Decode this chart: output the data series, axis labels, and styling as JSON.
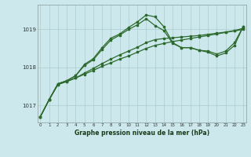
{
  "background_color": "#cce8ec",
  "grid_color": "#aacccc",
  "line_color": "#2d6a2d",
  "marker_color": "#2d6a2d",
  "ylabel_ticks": [
    1017,
    1018,
    1019
  ],
  "xlabel_ticks": [
    0,
    1,
    2,
    3,
    4,
    5,
    6,
    7,
    8,
    9,
    10,
    11,
    12,
    13,
    14,
    15,
    16,
    17,
    18,
    19,
    20,
    21,
    22,
    23
  ],
  "xlabel": "Graphe pression niveau de la mer (hPa)",
  "xlim": [
    -0.3,
    23.3
  ],
  "ylim": [
    1016.55,
    1019.65
  ],
  "line1_x": [
    0,
    1,
    2,
    3,
    4,
    5,
    6,
    7,
    8,
    9,
    10,
    11,
    12,
    13,
    14,
    15,
    16,
    17,
    18,
    19,
    20,
    21,
    22,
    23
  ],
  "line1_y": [
    1016.7,
    1017.15,
    1017.55,
    1017.63,
    1017.72,
    1017.82,
    1017.92,
    1018.03,
    1018.12,
    1018.22,
    1018.3,
    1018.4,
    1018.5,
    1018.58,
    1018.63,
    1018.68,
    1018.72,
    1018.76,
    1018.8,
    1018.84,
    1018.88,
    1018.92,
    1018.96,
    1019.0
  ],
  "line2_x": [
    0,
    1,
    2,
    3,
    4,
    5,
    6,
    7,
    8,
    9,
    10,
    11,
    12,
    13,
    14,
    15,
    16,
    17,
    18,
    19,
    20,
    21,
    22,
    23
  ],
  "line2_y": [
    1016.7,
    1017.15,
    1017.55,
    1017.63,
    1017.72,
    1017.85,
    1017.97,
    1018.1,
    1018.22,
    1018.33,
    1018.43,
    1018.53,
    1018.65,
    1018.73,
    1018.76,
    1018.78,
    1018.8,
    1018.82,
    1018.84,
    1018.87,
    1018.9,
    1018.93,
    1018.97,
    1019.03
  ],
  "line3_x": [
    0,
    1,
    2,
    3,
    4,
    5,
    6,
    7,
    8,
    9,
    10,
    11,
    12,
    13,
    14,
    15,
    16,
    17,
    18,
    19,
    20,
    21,
    22,
    23
  ],
  "line3_y": [
    1016.7,
    1017.15,
    1017.57,
    1017.65,
    1017.78,
    1018.05,
    1018.2,
    1018.47,
    1018.72,
    1018.85,
    1019.0,
    1019.12,
    1019.28,
    1019.1,
    1018.97,
    1018.63,
    1018.52,
    1018.52,
    1018.45,
    1018.4,
    1018.3,
    1018.38,
    1018.58,
    1019.08
  ],
  "line4_x": [
    0,
    1,
    2,
    3,
    4,
    5,
    6,
    7,
    8,
    9,
    10,
    11,
    12,
    13,
    14,
    15,
    16,
    17,
    18,
    19,
    20,
    21,
    22,
    23
  ],
  "line4_y": [
    1016.7,
    1017.15,
    1017.57,
    1017.65,
    1017.78,
    1018.08,
    1018.23,
    1018.52,
    1018.77,
    1018.88,
    1019.05,
    1019.2,
    1019.38,
    1019.33,
    1019.07,
    1018.65,
    1018.52,
    1018.52,
    1018.45,
    1018.43,
    1018.35,
    1018.43,
    1018.65,
    1019.08
  ]
}
